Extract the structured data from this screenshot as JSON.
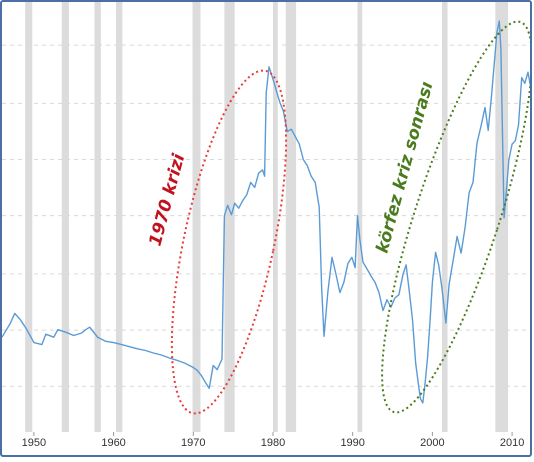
{
  "chart_data": {
    "type": "line",
    "title": "",
    "xlabel": "",
    "ylabel": "",
    "xlim": [
      1946,
      2013
    ],
    "ylim": [
      0,
      1
    ],
    "grid": true,
    "legend": "none",
    "x_ticks": [
      "1950",
      "1960",
      "1970",
      "1980",
      "1990",
      "2000",
      "2010"
    ],
    "line_color": "#5b9bd5",
    "recession_color": "#dcdcdc",
    "recession_periods": [
      [
        1948.9,
        1949.8
      ],
      [
        1953.5,
        1954.4
      ],
      [
        1957.6,
        1958.4
      ],
      [
        1960.3,
        1961.1
      ],
      [
        1969.9,
        1970.9
      ],
      [
        1973.9,
        1975.2
      ],
      [
        1980.0,
        1980.6
      ],
      [
        1981.6,
        1982.9
      ],
      [
        1990.6,
        1991.2
      ],
      [
        2001.2,
        2001.9
      ],
      [
        2007.9,
        2009.5
      ]
    ],
    "series": [
      {
        "values": [
          [
            1946.0,
            0.228
          ],
          [
            1947.0,
            0.26
          ],
          [
            1947.6,
            0.285
          ],
          [
            1948.3,
            0.27
          ],
          [
            1949.0,
            0.25
          ],
          [
            1950.0,
            0.215
          ],
          [
            1951.0,
            0.21
          ],
          [
            1951.5,
            0.235
          ],
          [
            1952.5,
            0.228
          ],
          [
            1953.0,
            0.246
          ],
          [
            1954.0,
            0.24
          ],
          [
            1955.0,
            0.232
          ],
          [
            1956.0,
            0.238
          ],
          [
            1956.5,
            0.246
          ],
          [
            1957.0,
            0.252
          ],
          [
            1958.0,
            0.228
          ],
          [
            1959.0,
            0.218
          ],
          [
            1960.0,
            0.215
          ],
          [
            1961.0,
            0.21
          ],
          [
            1962.0,
            0.205
          ],
          [
            1963.0,
            0.2
          ],
          [
            1964.0,
            0.196
          ],
          [
            1965.0,
            0.19
          ],
          [
            1966.0,
            0.185
          ],
          [
            1967.0,
            0.178
          ],
          [
            1968.0,
            0.172
          ],
          [
            1969.0,
            0.165
          ],
          [
            1970.0,
            0.155
          ],
          [
            1970.5,
            0.148
          ],
          [
            1971.0,
            0.136
          ],
          [
            1971.5,
            0.12
          ],
          [
            1972.0,
            0.105
          ],
          [
            1972.5,
            0.16
          ],
          [
            1973.0,
            0.15
          ],
          [
            1973.6,
            0.175
          ],
          [
            1973.9,
            0.52
          ],
          [
            1974.3,
            0.545
          ],
          [
            1974.8,
            0.522
          ],
          [
            1975.2,
            0.55
          ],
          [
            1975.7,
            0.538
          ],
          [
            1976.2,
            0.556
          ],
          [
            1976.7,
            0.57
          ],
          [
            1977.2,
            0.6
          ],
          [
            1977.7,
            0.588
          ],
          [
            1978.2,
            0.622
          ],
          [
            1978.7,
            0.63
          ],
          [
            1978.95,
            0.615
          ],
          [
            1979.15,
            0.815
          ],
          [
            1979.5,
            0.878
          ],
          [
            1979.8,
            0.86
          ],
          [
            1980.1,
            0.842
          ],
          [
            1980.5,
            0.815
          ],
          [
            1980.9,
            0.79
          ],
          [
            1981.3,
            0.772
          ],
          [
            1981.8,
            0.722
          ],
          [
            1982.3,
            0.728
          ],
          [
            1982.8,
            0.71
          ],
          [
            1983.3,
            0.692
          ],
          [
            1983.8,
            0.655
          ],
          [
            1984.3,
            0.64
          ],
          [
            1984.8,
            0.615
          ],
          [
            1985.3,
            0.6
          ],
          [
            1985.8,
            0.54
          ],
          [
            1986.1,
            0.35
          ],
          [
            1986.4,
            0.23
          ],
          [
            1986.9,
            0.34
          ],
          [
            1987.4,
            0.42
          ],
          [
            1987.9,
            0.38
          ],
          [
            1988.4,
            0.335
          ],
          [
            1988.9,
            0.36
          ],
          [
            1989.4,
            0.405
          ],
          [
            1989.9,
            0.42
          ],
          [
            1990.3,
            0.395
          ],
          [
            1990.6,
            0.52
          ],
          [
            1990.9,
            0.462
          ],
          [
            1991.3,
            0.408
          ],
          [
            1991.8,
            0.392
          ],
          [
            1992.3,
            0.375
          ],
          [
            1992.8,
            0.36
          ],
          [
            1993.3,
            0.335
          ],
          [
            1993.8,
            0.292
          ],
          [
            1994.3,
            0.318
          ],
          [
            1994.8,
            0.3
          ],
          [
            1995.3,
            0.322
          ],
          [
            1995.8,
            0.33
          ],
          [
            1996.3,
            0.378
          ],
          [
            1996.7,
            0.402
          ],
          [
            1997.1,
            0.338
          ],
          [
            1997.5,
            0.27
          ],
          [
            1997.9,
            0.165
          ],
          [
            1998.2,
            0.122
          ],
          [
            1998.5,
            0.08
          ],
          [
            1998.8,
            0.07
          ],
          [
            1999.1,
            0.12
          ],
          [
            1999.4,
            0.18
          ],
          [
            1999.7,
            0.265
          ],
          [
            2000.0,
            0.36
          ],
          [
            2000.4,
            0.432
          ],
          [
            2000.8,
            0.4
          ],
          [
            2001.2,
            0.345
          ],
          [
            2001.7,
            0.262
          ],
          [
            2002.1,
            0.355
          ],
          [
            2002.6,
            0.412
          ],
          [
            2003.1,
            0.47
          ],
          [
            2003.6,
            0.43
          ],
          [
            2004.1,
            0.492
          ],
          [
            2004.6,
            0.575
          ],
          [
            2005.1,
            0.6
          ],
          [
            2005.6,
            0.695
          ],
          [
            2006.1,
            0.735
          ],
          [
            2006.6,
            0.78
          ],
          [
            2007.0,
            0.725
          ],
          [
            2007.4,
            0.805
          ],
          [
            2007.8,
            0.895
          ],
          [
            2008.1,
            0.96
          ],
          [
            2008.4,
            0.988
          ],
          [
            2008.6,
            0.92
          ],
          [
            2008.8,
            0.715
          ],
          [
            2009.0,
            0.515
          ],
          [
            2009.2,
            0.56
          ],
          [
            2009.6,
            0.655
          ],
          [
            2010.0,
            0.692
          ],
          [
            2010.4,
            0.7
          ],
          [
            2010.8,
            0.738
          ],
          [
            2011.2,
            0.852
          ],
          [
            2011.6,
            0.838
          ],
          [
            2012.0,
            0.865
          ],
          [
            2012.4,
            0.822
          ],
          [
            2012.8,
            0.852
          ],
          [
            2013.0,
            0.84
          ]
        ]
      }
    ],
    "annotations": [
      {
        "text": "1970 krizi",
        "color": "#c1121f",
        "ellipse_color": "#e83b3b"
      },
      {
        "text": "körfez kriz sonrası",
        "color": "#4a7c1f",
        "ellipse_color": "#4a7c1f"
      }
    ]
  }
}
